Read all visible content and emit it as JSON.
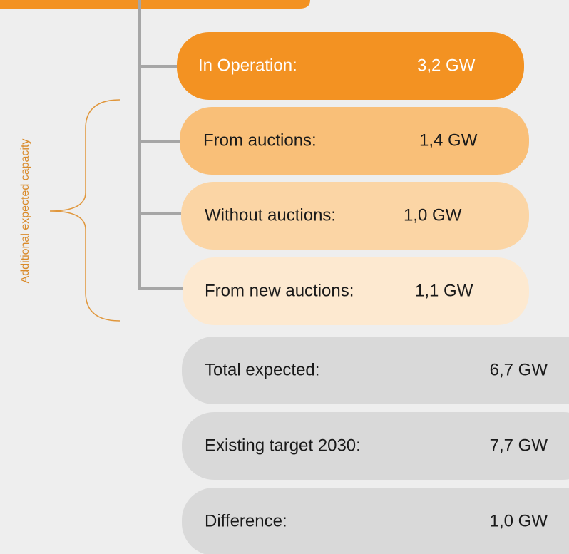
{
  "side_label": "Additional  expected capacity",
  "items": [
    {
      "label": "In Operation:",
      "value": "3,2 GW"
    },
    {
      "label": "From auctions:",
      "value": "1,4 GW"
    },
    {
      "label": "Without auctions:",
      "value": "1,0 GW"
    },
    {
      "label": "From new auctions:",
      "value": "1,1 GW"
    }
  ],
  "summary": [
    {
      "label": "Total expected:",
      "value": "6,7 GW"
    },
    {
      "label": "Existing target 2030:",
      "value": "7,7 GW"
    },
    {
      "label": "Difference:",
      "value": "1,0 GW"
    }
  ]
}
